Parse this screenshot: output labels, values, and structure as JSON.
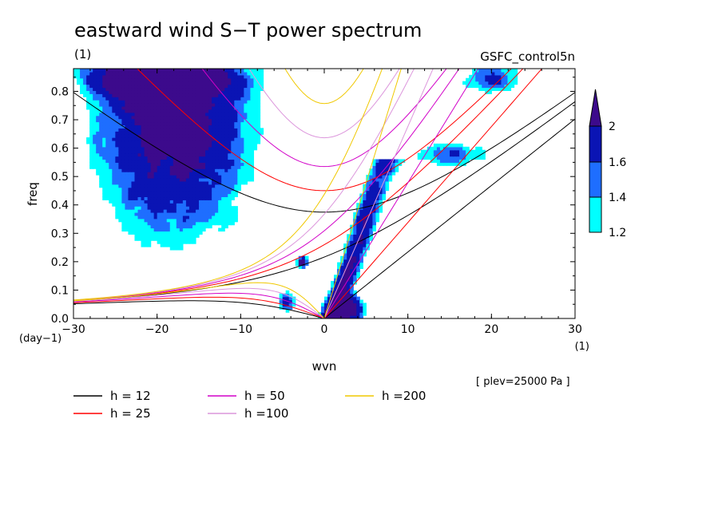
{
  "chart_data": {
    "type": "heatmap",
    "title": "eastward wind S−T power spectrum",
    "subtitle_left": "(1)",
    "subtitle_right": "GSFC_control5n",
    "xlabel": "wvn",
    "ylabel": "freq",
    "x_unit": "(1)",
    "y_unit": "(day−1)",
    "note": "[ plev=25000 Pa ]",
    "xlim": [
      -30,
      30
    ],
    "ylim": [
      0,
      0.88
    ],
    "x_ticks": [
      -30,
      -20,
      -10,
      0,
      10,
      20,
      30
    ],
    "x_tick_labels": [
      "−30",
      "−20",
      "−10",
      "0",
      "10",
      "20",
      "30"
    ],
    "y_ticks": [
      0,
      0.1,
      0.2,
      0.3,
      0.4,
      0.5,
      0.6,
      0.7,
      0.8
    ],
    "y_tick_labels": [
      "0.0",
      "0.1",
      "0.2",
      "0.3",
      "0.4",
      "0.5",
      "0.6",
      "0.7",
      "0.8"
    ],
    "colorbar": {
      "levels": [
        1.2,
        1.4,
        1.6,
        2
      ],
      "level_labels": [
        "1.2",
        "1.4",
        "1.6",
        "2"
      ],
      "colors": [
        "#00ffff",
        "#1e6eff",
        "#0a14b4",
        "#3c0a8c"
      ]
    },
    "dispersion_curves": [
      {
        "label": "h = 12",
        "h": 12,
        "color": "#000000"
      },
      {
        "label": "h = 25",
        "h": 25,
        "color": "#ff0000"
      },
      {
        "label": "h = 50",
        "h": 50,
        "color": "#d200c8"
      },
      {
        "label": "h =100",
        "h": 100,
        "color": "#dc96dc"
      },
      {
        "label": "h =200",
        "h": 200,
        "color": "#f0c800"
      }
    ],
    "power_regions": [
      {
        "x": [
          -30,
          -8
        ],
        "y": [
          0.3,
          0.88
        ],
        "level": 1.4,
        "note": "broad westward region"
      },
      {
        "x": [
          -25,
          -15
        ],
        "y": [
          0.75,
          0.88
        ],
        "level": 2
      },
      {
        "x": [
          3,
          8
        ],
        "y": [
          0,
          0.5
        ],
        "level": 2,
        "note": "Kelvin-wave ridge"
      },
      {
        "x": [
          0,
          5
        ],
        "y": [
          0,
          0.07
        ],
        "level": 2
      },
      {
        "x": [
          -3,
          -2
        ],
        "y": [
          0.18,
          0.22
        ],
        "level": 2
      }
    ]
  }
}
